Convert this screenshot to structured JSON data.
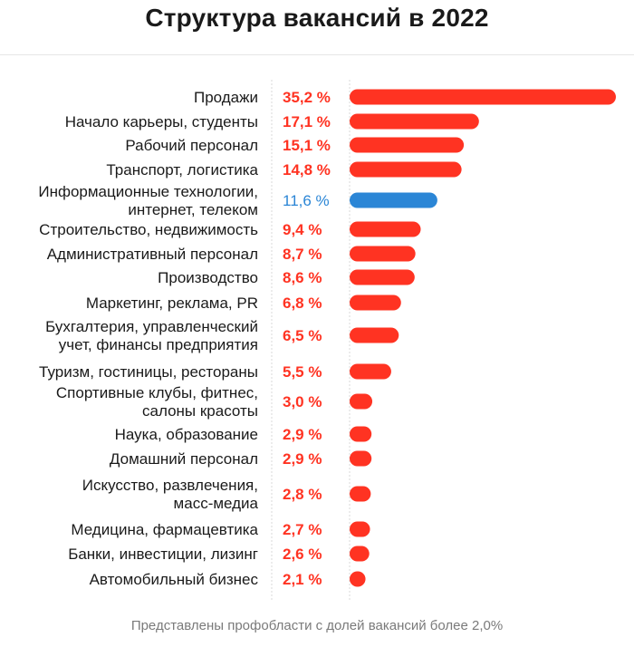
{
  "title": "Структура вакансий в 2022",
  "footnote": "Представлены профобласти с долей вакансий более 2,0%",
  "colors": {
    "accent": "#ff3322",
    "highlight": "#2b86d6",
    "label": "#1a1a1a",
    "guide": "#d9d9d9"
  },
  "chart_data": {
    "type": "bar",
    "orientation": "horizontal",
    "unit": "%",
    "categories": [
      [
        "Продажи"
      ],
      [
        "Начало карьеры, студенты"
      ],
      [
        "Рабочий персонал"
      ],
      [
        "Транспорт, логистика"
      ],
      [
        "Информационные технологии,",
        "интернет, телеком"
      ],
      [
        "Строительство, недвижимость"
      ],
      [
        "Административный персонал"
      ],
      [
        "Производство"
      ],
      [
        "Маркетинг, реклама, PR"
      ],
      [
        "Бухгалтерия, управленческий",
        "учет, финансы предприятия"
      ],
      [
        "Туризм, гостиницы, рестораны"
      ],
      [
        "Спортивные клубы, фитнес,",
        "салоны красоты"
      ],
      [
        "Наука, образование"
      ],
      [
        "Домашний персонал"
      ],
      [
        "Искусство, развлечения,",
        "масс-медиа"
      ],
      [
        "Медицина, фармацевтика"
      ],
      [
        "Банки, инвестиции, лизинг"
      ],
      [
        "Автомобильный бизнес"
      ]
    ],
    "values": [
      35.2,
      17.1,
      15.1,
      14.8,
      11.6,
      9.4,
      8.7,
      8.6,
      6.8,
      6.5,
      5.5,
      3.0,
      2.9,
      2.9,
      2.8,
      2.7,
      2.6,
      2.1
    ],
    "value_labels": [
      "35,2 %",
      "17,1 %",
      "15,1 %",
      "14,8 %",
      "11,6 %",
      "9,4 %",
      "8,7 %",
      "8,6  %",
      "6,8 %",
      "6,5 %",
      "5,5 %",
      "3,0 %",
      "2,9 %",
      "2,9 %",
      "2,8 %",
      "2,7 %",
      "2,6 %",
      "2,1 %"
    ],
    "highlight_index": 4,
    "xlim": [
      0,
      35.2
    ],
    "grid": false,
    "legend": "none"
  }
}
